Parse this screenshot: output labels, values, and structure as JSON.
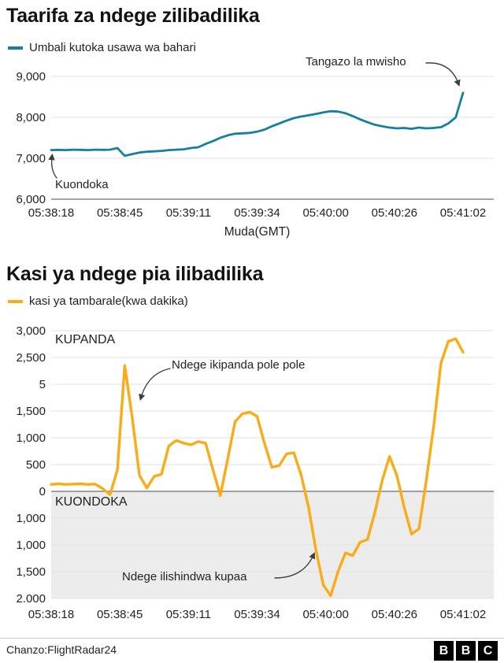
{
  "chart_data": [
    {
      "type": "line",
      "title": "Taarifa za ndege zilibadilika",
      "legend": "Umbali kutoka usawa wa bahari",
      "color": "#1380A1",
      "xlabel": "Muda(GMT)",
      "x_tick_labels": [
        "05:38:18",
        "05:38:45",
        "05:39:11",
        "05:39:34",
        "05:40:00",
        "05:40:26",
        "05:41:02"
      ],
      "y_tick_labels": [
        "9,000",
        "8,000",
        "7,000",
        "6,000"
      ],
      "ylim": [
        6000,
        9000
      ],
      "grid": true,
      "legend_position": "top-left",
      "values": [
        7200,
        7205,
        7200,
        7210,
        7205,
        7200,
        7210,
        7205,
        7210,
        7250,
        7060,
        7100,
        7140,
        7160,
        7170,
        7180,
        7200,
        7210,
        7220,
        7250,
        7270,
        7350,
        7420,
        7500,
        7560,
        7600,
        7610,
        7620,
        7650,
        7700,
        7780,
        7850,
        7920,
        7980,
        8020,
        8050,
        8080,
        8120,
        8150,
        8140,
        8100,
        8030,
        7950,
        7880,
        7820,
        7780,
        7750,
        7730,
        7740,
        7720,
        7750,
        7730,
        7740,
        7760,
        7850,
        8000,
        8600
      ],
      "annotations": [
        {
          "text": "Tangazo la mwisho",
          "points_to": "end of line"
        },
        {
          "text": "Kuondoka",
          "points_to": "start of line"
        }
      ]
    },
    {
      "type": "line",
      "title": "Kasi ya ndege pia ilibadilika",
      "legend": "kasi ya tambarale(kwa dakika)",
      "color": "#FAAB18",
      "x_tick_labels": [
        "05:38:18",
        "05:38:45",
        "05:39:11",
        "05:39:34",
        "05:40:00",
        "05:40:26",
        "05:41:02"
      ],
      "y_tick_labels": [
        "3,000",
        "2,500",
        "5",
        "1,500",
        "1,000",
        "500",
        "0",
        "1,000",
        "1,000",
        "1,500",
        "2.000"
      ],
      "ylim": [
        -2000,
        3000
      ],
      "grid": true,
      "shaded_below_zero": true,
      "region_labels": {
        "above_zero": "KUPANDA",
        "below_zero": "KUONDOKA"
      },
      "values": [
        130,
        140,
        130,
        135,
        140,
        130,
        135,
        50,
        -60,
        400,
        2350,
        1400,
        300,
        60,
        280,
        320,
        850,
        950,
        900,
        870,
        930,
        900,
        400,
        -80,
        600,
        1300,
        1450,
        1480,
        1400,
        900,
        450,
        480,
        700,
        720,
        300,
        -300,
        -1100,
        -1750,
        -1950,
        -1500,
        -1150,
        -1200,
        -950,
        -900,
        -400,
        200,
        650,
        300,
        -300,
        -800,
        -700,
        200,
        1200,
        2400,
        2800,
        2850,
        2600
      ],
      "annotations": [
        {
          "text": "Ndege ikipanda pole pole",
          "points_to": "climb spike"
        },
        {
          "text": "Ndege ilishindwa kupaa",
          "points_to": "deep descent"
        }
      ]
    }
  ],
  "footer": {
    "source": "Chanzo:FlightRadar24",
    "logo_letters": [
      "B",
      "B",
      "C"
    ]
  }
}
